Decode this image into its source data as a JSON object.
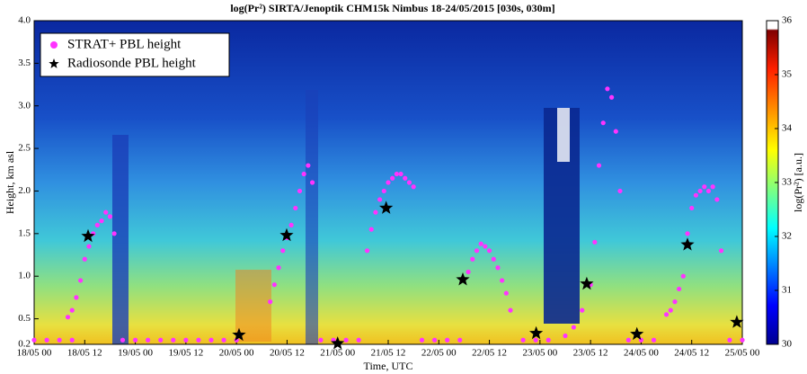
{
  "chart_data": {
    "type": "scatter",
    "title": "log(Pr²) SIRTA/Jenoptik CHM15k Nimbus 18-24/05/2015 [030s, 030m]",
    "x_label": "Time, UTC",
    "y_label": "Height, km asl",
    "xlim": [
      0,
      168
    ],
    "xticks": [
      {
        "value": 0,
        "label": "18/05 00"
      },
      {
        "value": 12,
        "label": "18/05 12"
      },
      {
        "value": 24,
        "label": "19/05 00"
      },
      {
        "value": 36,
        "label": "19/05 12"
      },
      {
        "value": 48,
        "label": "20/05 00"
      },
      {
        "value": 60,
        "label": "20/05 12"
      },
      {
        "value": 72,
        "label": "21/05 00"
      },
      {
        "value": 84,
        "label": "21/05 12"
      },
      {
        "value": 96,
        "label": "22/05 00"
      },
      {
        "value": 108,
        "label": "22/05 12"
      },
      {
        "value": 120,
        "label": "23/05 00"
      },
      {
        "value": 132,
        "label": "23/05 12"
      },
      {
        "value": 144,
        "label": "24/05 00"
      },
      {
        "value": 156,
        "label": "24/05 12"
      },
      {
        "value": 168,
        "label": "25/05 00"
      }
    ],
    "ylim": [
      0.2,
      4.0
    ],
    "yticks": [
      0.2,
      0.5,
      {
        "value": 1,
        "label": "1.0"
      },
      1.5,
      {
        "value": 2,
        "label": "2.0"
      },
      2.5,
      {
        "value": 3,
        "label": "3.0"
      },
      3.5,
      {
        "value": 4,
        "label": "4.0"
      }
    ],
    "legend": "upper left",
    "series": [
      {
        "name": "STRAT+ PBL height",
        "color": "#ff33ff",
        "marker": "circle",
        "x": [
          0,
          3,
          6,
          9,
          21,
          24,
          27,
          30,
          33,
          36,
          39,
          42,
          45,
          48,
          8,
          9,
          10,
          11,
          12,
          13,
          14,
          15,
          16,
          17,
          18,
          19,
          56,
          57,
          58,
          59,
          60,
          61,
          62,
          63,
          64,
          65,
          66,
          68,
          71,
          74,
          77,
          79,
          80,
          81,
          82,
          83,
          84,
          85,
          86,
          87,
          88,
          89,
          90,
          92,
          95,
          98,
          101,
          103,
          104,
          105,
          106,
          107,
          108,
          109,
          110,
          111,
          112,
          113,
          116,
          119,
          122,
          126,
          128,
          130,
          132,
          133,
          134,
          135,
          136,
          137,
          138,
          139,
          141,
          144,
          147,
          150,
          151,
          152,
          153,
          154,
          155,
          156,
          157,
          158,
          159,
          160,
          161,
          162,
          163,
          165,
          168
        ],
        "values": [
          0.25,
          0.25,
          0.25,
          0.25,
          0.25,
          0.25,
          0.25,
          0.25,
          0.25,
          0.25,
          0.25,
          0.25,
          0.25,
          0.25,
          0.52,
          0.6,
          0.75,
          0.95,
          1.2,
          1.35,
          1.5,
          1.6,
          1.65,
          1.75,
          1.7,
          1.5,
          0.7,
          0.9,
          1.1,
          1.3,
          1.45,
          1.6,
          1.8,
          2.0,
          2.2,
          2.3,
          2.1,
          0.25,
          0.25,
          0.25,
          0.25,
          1.3,
          1.55,
          1.75,
          1.9,
          2.0,
          2.1,
          2.15,
          2.2,
          2.2,
          2.15,
          2.1,
          2.05,
          0.25,
          0.25,
          0.25,
          0.25,
          1.05,
          1.2,
          1.3,
          1.38,
          1.35,
          1.3,
          1.2,
          1.1,
          0.95,
          0.8,
          0.6,
          0.25,
          0.25,
          0.25,
          0.3,
          0.4,
          0.6,
          0.9,
          1.4,
          2.3,
          2.8,
          3.2,
          3.1,
          2.7,
          2.0,
          0.25,
          0.25,
          0.25,
          0.55,
          0.6,
          0.7,
          0.85,
          1.0,
          1.5,
          1.8,
          1.95,
          2.0,
          2.05,
          2.0,
          2.05,
          1.9,
          1.3,
          0.25,
          0.25
        ]
      },
      {
        "name": "Radiosonde PBL height",
        "color": "#000000",
        "marker": "star",
        "x": [
          12.8,
          48.6,
          59.9,
          72,
          83.5,
          101.7,
          119.1,
          131.1,
          143,
          155,
          166.7
        ],
        "values": [
          1.47,
          0.31,
          1.48,
          0.21,
          1.8,
          0.96,
          0.33,
          0.91,
          0.32,
          1.37,
          0.46
        ]
      }
    ],
    "colorbar": {
      "label": "log(Pr²) [a.u.]",
      "lim": [
        30,
        36
      ],
      "ticks": [
        30,
        31,
        32,
        33,
        34,
        35,
        36
      ]
    }
  }
}
